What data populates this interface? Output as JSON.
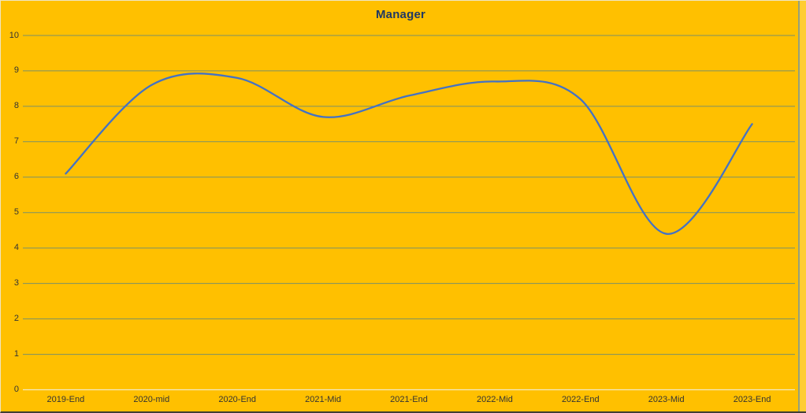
{
  "chart_data": {
    "type": "line",
    "title": "Manager",
    "categories": [
      "2019-End",
      "2020-mid",
      "2020-End",
      "2021-Mid",
      "2021-End",
      "2022-Mid",
      "2022-End",
      "2023-Mid",
      "2023-End"
    ],
    "series": [
      {
        "name": "Manager",
        "values": [
          6.1,
          8.6,
          8.8,
          7.7,
          8.3,
          8.7,
          8.2,
          4.4,
          7.5
        ]
      }
    ],
    "xlabel": "",
    "ylabel": "",
    "ylim": [
      0,
      10
    ],
    "ytick_step": 1,
    "ytick_labels": [
      "0",
      "1",
      "2",
      "3",
      "4",
      "5",
      "6",
      "7",
      "8",
      "9",
      "10"
    ],
    "grid": "horizontal",
    "legend": "none",
    "smooth": true,
    "colors": {
      "background": "#FFC000",
      "line": "#4472C4",
      "gridline": "#7A9168",
      "axis_line": "#F2E9C4",
      "title": "#1F3864",
      "tick_label": "#333333",
      "right_border": "#95A07B",
      "right_margin_strip": "#FFCD33"
    }
  }
}
